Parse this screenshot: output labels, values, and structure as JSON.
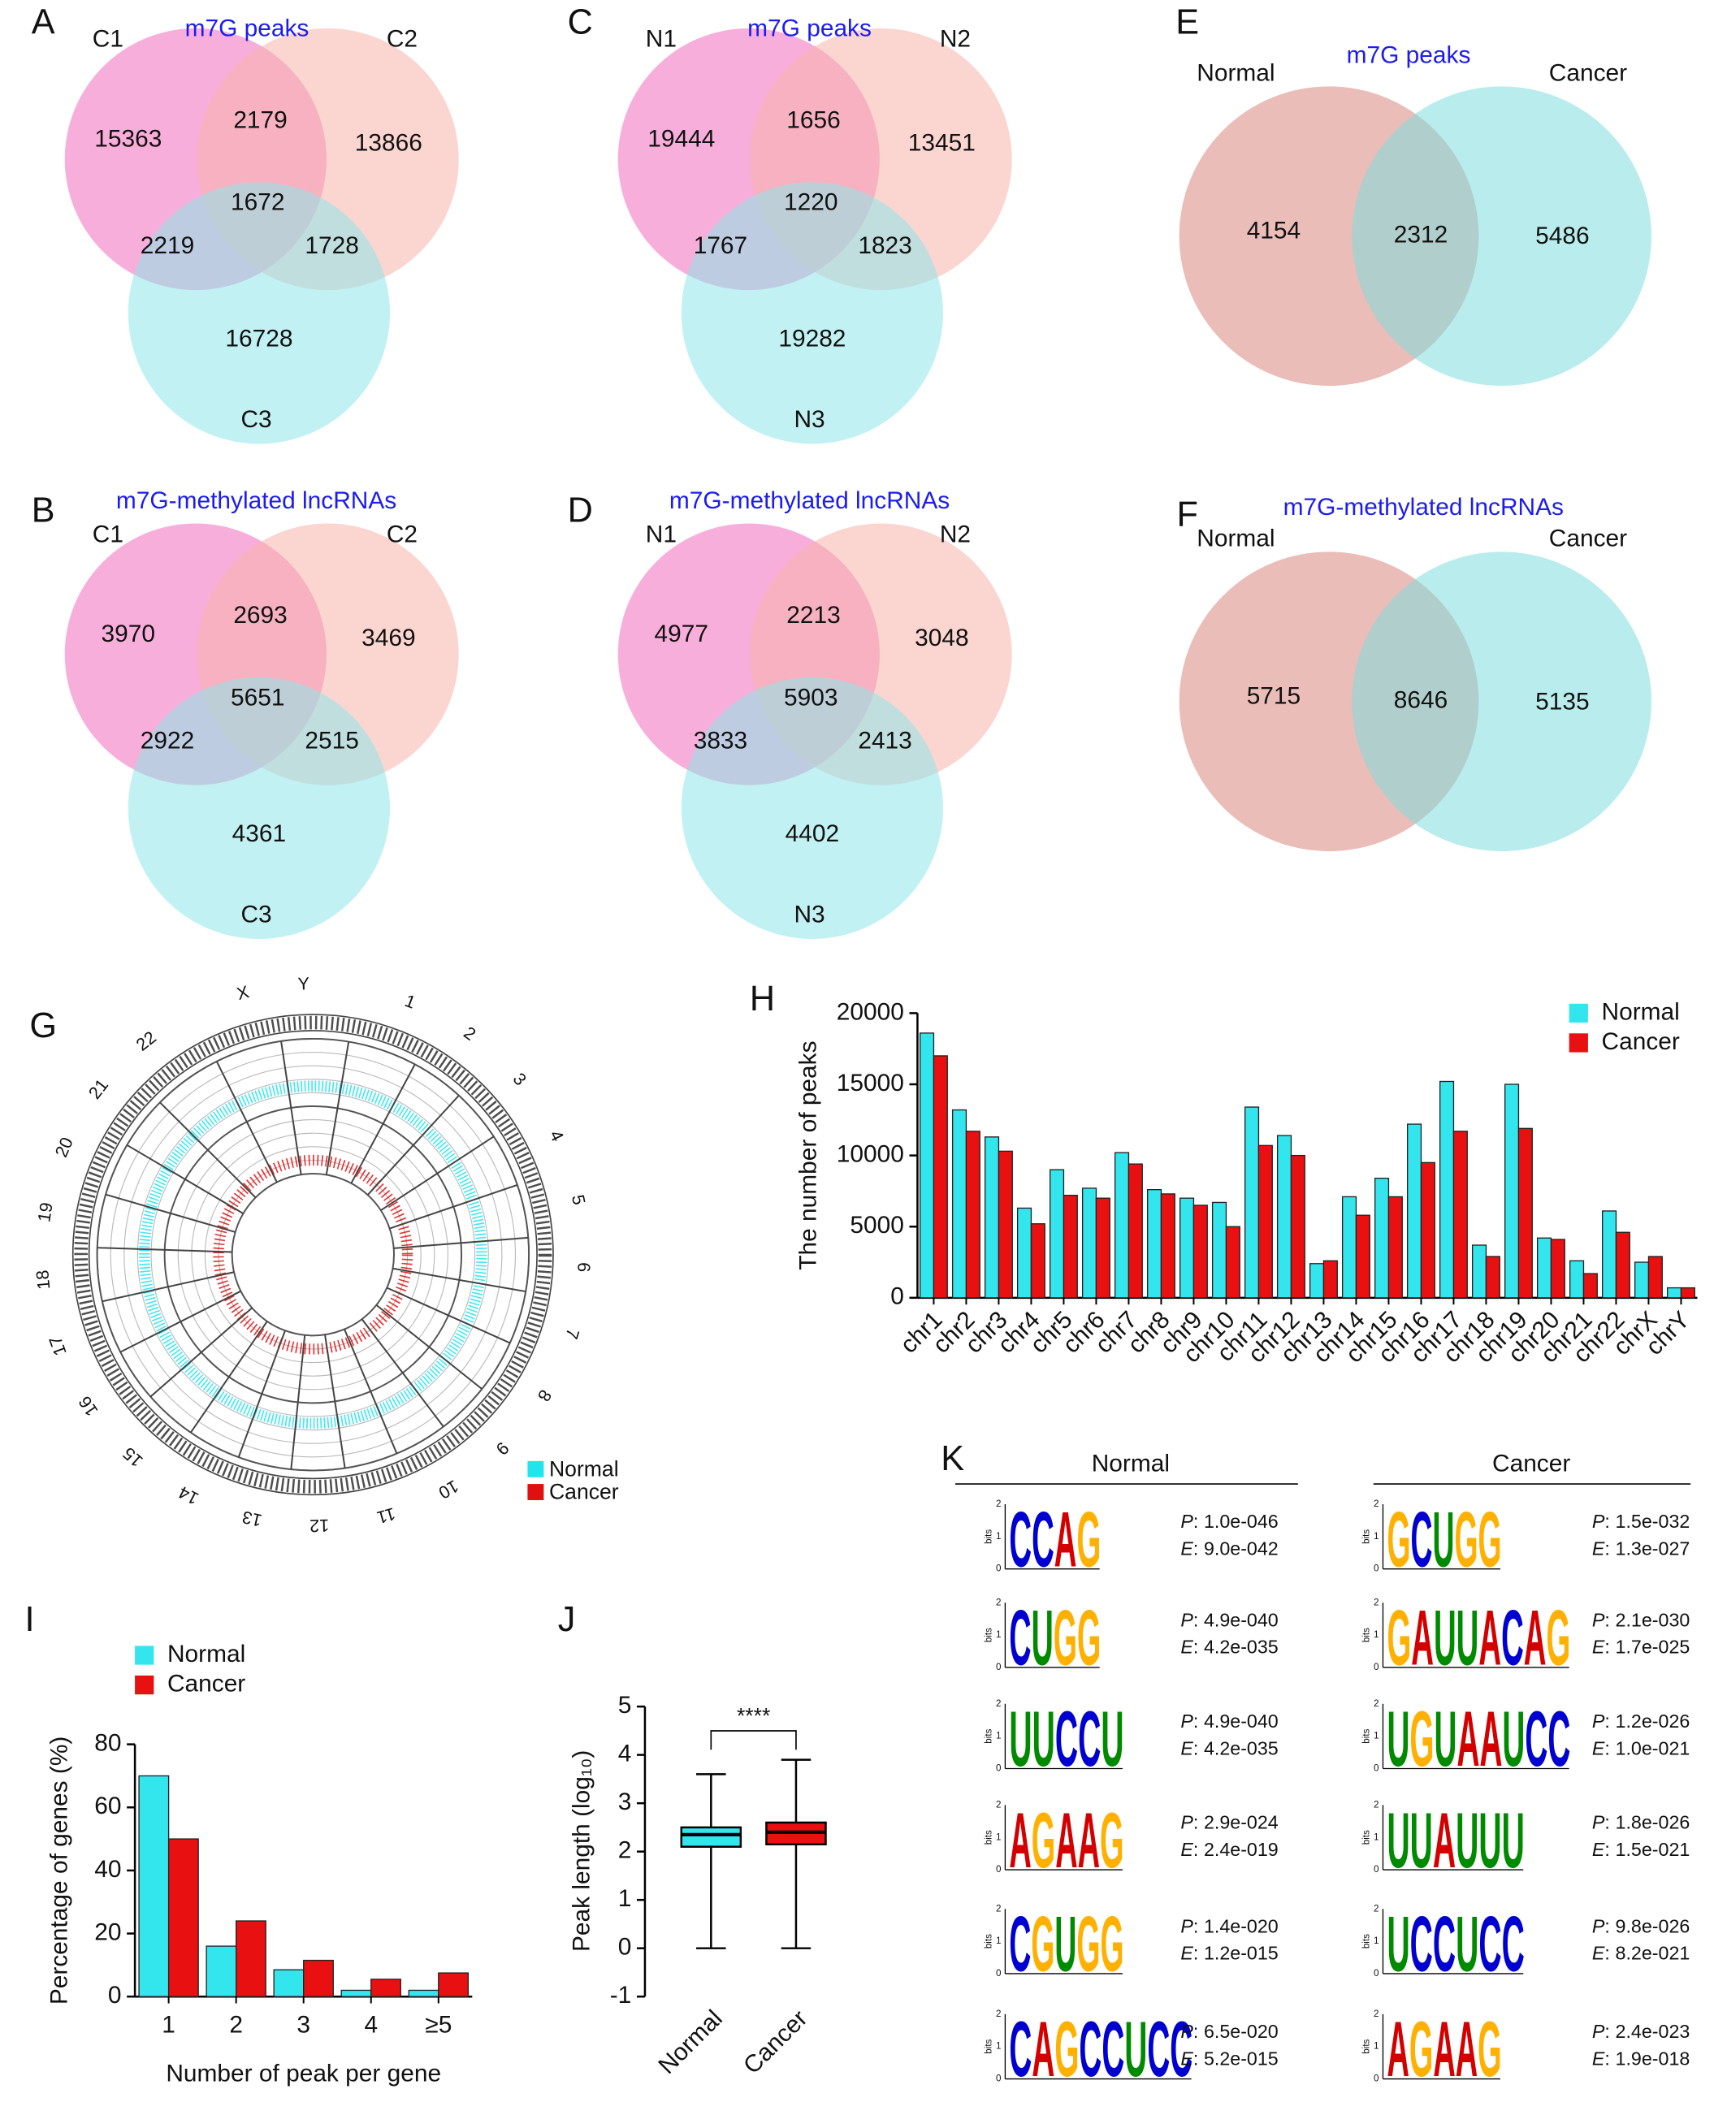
{
  "chart_data": [
    {
      "type": "venn3",
      "panel": "A",
      "title": "m7G peaks",
      "title_color": "#1c1cf0",
      "sets": [
        {
          "name": "C1",
          "color": "#f06cbc"
        },
        {
          "name": "C2",
          "color": "#f8b4ac"
        },
        {
          "name": "C3",
          "color": "#8fe6ea"
        }
      ],
      "regions": [
        {
          "sets": [
            0
          ],
          "value": 15363
        },
        {
          "sets": [
            1
          ],
          "value": 13866
        },
        {
          "sets": [
            2
          ],
          "value": 16728
        },
        {
          "sets": [
            0,
            1
          ],
          "value": 2179
        },
        {
          "sets": [
            0,
            2
          ],
          "value": 2219
        },
        {
          "sets": [
            1,
            2
          ],
          "value": 1728
        },
        {
          "sets": [
            0,
            1,
            2
          ],
          "value": 1672
        }
      ]
    },
    {
      "type": "venn3",
      "panel": "C",
      "title": "m7G peaks",
      "title_color": "#1c1cf0",
      "sets": [
        {
          "name": "N1",
          "color": "#f06cbc"
        },
        {
          "name": "N2",
          "color": "#f8b4ac"
        },
        {
          "name": "N3",
          "color": "#8fe6ea"
        }
      ],
      "regions": [
        {
          "sets": [
            0
          ],
          "value": 19444
        },
        {
          "sets": [
            1
          ],
          "value": 13451
        },
        {
          "sets": [
            2
          ],
          "value": 19282
        },
        {
          "sets": [
            0,
            1
          ],
          "value": 1656
        },
        {
          "sets": [
            0,
            2
          ],
          "value": 1767
        },
        {
          "sets": [
            1,
            2
          ],
          "value": 1823
        },
        {
          "sets": [
            0,
            1,
            2
          ],
          "value": 1220
        }
      ]
    },
    {
      "type": "venn2",
      "panel": "E",
      "title": "m7G peaks",
      "title_color": "#1c1cf0",
      "sets": [
        {
          "name": "Normal",
          "color": "#d98780"
        },
        {
          "name": "Cancer",
          "color": "#7fdcdc"
        }
      ],
      "regions": [
        {
          "sets": [
            0
          ],
          "value": 4154
        },
        {
          "sets": [
            0,
            1
          ],
          "value": 2312
        },
        {
          "sets": [
            1
          ],
          "value": 5486
        }
      ]
    },
    {
      "type": "venn3",
      "panel": "B",
      "title": "m7G-methylated lncRNAs",
      "title_color": "#1c1cf0",
      "sets": [
        {
          "name": "C1",
          "color": "#f06cbc"
        },
        {
          "name": "C2",
          "color": "#f8b4ac"
        },
        {
          "name": "C3",
          "color": "#8fe6ea"
        }
      ],
      "regions": [
        {
          "sets": [
            0
          ],
          "value": 3970
        },
        {
          "sets": [
            1
          ],
          "value": 3469
        },
        {
          "sets": [
            2
          ],
          "value": 4361
        },
        {
          "sets": [
            0,
            1
          ],
          "value": 2693
        },
        {
          "sets": [
            0,
            2
          ],
          "value": 2922
        },
        {
          "sets": [
            1,
            2
          ],
          "value": 2515
        },
        {
          "sets": [
            0,
            1,
            2
          ],
          "value": 5651
        }
      ]
    },
    {
      "type": "venn3",
      "panel": "D",
      "title": "m7G-methylated lncRNAs",
      "title_color": "#1c1cf0",
      "sets": [
        {
          "name": "N1",
          "color": "#f06cbc"
        },
        {
          "name": "N2",
          "color": "#f8b4ac"
        },
        {
          "name": "N3",
          "color": "#8fe6ea"
        }
      ],
      "regions": [
        {
          "sets": [
            0
          ],
          "value": 4977
        },
        {
          "sets": [
            1
          ],
          "value": 3048
        },
        {
          "sets": [
            2
          ],
          "value": 4402
        },
        {
          "sets": [
            0,
            1
          ],
          "value": 2213
        },
        {
          "sets": [
            0,
            2
          ],
          "value": 3833
        },
        {
          "sets": [
            1,
            2
          ],
          "value": 2413
        },
        {
          "sets": [
            0,
            1,
            2
          ],
          "value": 5903
        }
      ]
    },
    {
      "type": "venn2",
      "panel": "F",
      "title": "m7G-methylated lncRNAs",
      "title_color": "#1c1cf0",
      "sets": [
        {
          "name": "Normal",
          "color": "#d98780"
        },
        {
          "name": "Cancer",
          "color": "#7fdcdc"
        }
      ],
      "regions": [
        {
          "sets": [
            0
          ],
          "value": 5715
        },
        {
          "sets": [
            0,
            1
          ],
          "value": 8646
        },
        {
          "sets": [
            1
          ],
          "value": 5135
        }
      ]
    },
    {
      "type": "circos",
      "panel": "G",
      "legend": "bottom-right",
      "chromosomes": [
        "1",
        "2",
        "3",
        "4",
        "5",
        "6",
        "7",
        "8",
        "9",
        "10",
        "11",
        "12",
        "13",
        "14",
        "15",
        "16",
        "17",
        "18",
        "19",
        "20",
        "21",
        "22",
        "X",
        "Y"
      ],
      "series": [
        {
          "name": "Normal",
          "color": "#22e4ee"
        },
        {
          "name": "Cancer",
          "color": "#e01010"
        }
      ]
    },
    {
      "type": "bar",
      "panel": "H",
      "ylabel": "The number of peaks",
      "legend": "top-right",
      "categories": [
        "chr1",
        "chr2",
        "chr3",
        "chr4",
        "chr5",
        "chr6",
        "chr7",
        "chr8",
        "chr9",
        "chr10",
        "chr11",
        "chr12",
        "chr13",
        "chr14",
        "chr15",
        "chr16",
        "chr17",
        "chr18",
        "chr19",
        "chr20",
        "chr21",
        "chr22",
        "chrX",
        "chrY"
      ],
      "series": [
        {
          "name": "Normal",
          "color": "#33e6ee",
          "values": [
            18600,
            13200,
            11300,
            6300,
            9000,
            7700,
            10200,
            7600,
            7000,
            6700,
            13400,
            11400,
            2400,
            7100,
            8400,
            12200,
            15200,
            3700,
            15000,
            4200,
            2600,
            6100,
            2500,
            700
          ]
        },
        {
          "name": "Cancer",
          "color": "#e81010",
          "values": [
            17000,
            11700,
            10300,
            5200,
            7200,
            7000,
            9400,
            7300,
            6500,
            5000,
            10700,
            10000,
            2600,
            5800,
            7100,
            9500,
            11700,
            2900,
            11900,
            4100,
            1700,
            4600,
            2900,
            700
          ]
        }
      ],
      "ylim": [
        0,
        20000
      ],
      "yticks": [
        0,
        5000,
        10000,
        15000,
        20000
      ]
    },
    {
      "type": "bar",
      "panel": "I",
      "ylabel": "Percentage of genes (%)",
      "xlabel": "Number of peak per gene",
      "legend": "top-left",
      "categories": [
        "1",
        "2",
        "3",
        "4",
        "≥5"
      ],
      "series": [
        {
          "name": "Normal",
          "color": "#33e6ee",
          "values": [
            70,
            16,
            8.5,
            2,
            2
          ]
        },
        {
          "name": "Cancer",
          "color": "#e81010",
          "values": [
            50,
            24,
            11.5,
            5.5,
            7.5
          ]
        }
      ],
      "ylim": [
        0,
        80
      ],
      "yticks": [
        0,
        20,
        40,
        60,
        80
      ]
    },
    {
      "type": "box",
      "panel": "J",
      "ylabel": "Peak length (log₁₀)",
      "annotation": "****",
      "boxes": [
        {
          "name": "Normal",
          "color": "#33e6ee",
          "min": 0,
          "q1": 2.1,
          "median": 2.35,
          "q3": 2.5,
          "max": 3.6
        },
        {
          "name": "Cancer",
          "color": "#e81010",
          "min": 0,
          "q1": 2.15,
          "median": 2.4,
          "q3": 2.6,
          "max": 3.9
        }
      ],
      "ylim": [
        -1,
        5
      ],
      "yticks": [
        -1,
        0,
        1,
        2,
        3,
        4,
        5
      ]
    },
    {
      "type": "motifs",
      "panel": "K",
      "p_symbol": "P",
      "e_symbol": "E",
      "separator": ":",
      "logo_ylabel": "bits",
      "logo_yticks": [
        0,
        1,
        2
      ],
      "letter_colors": {
        "A": "#d40000",
        "C": "#0000d0",
        "G": "#ffb000",
        "U": "#008a00"
      },
      "groups": [
        {
          "name": "Normal",
          "motifs": [
            {
              "letters": "CCAG",
              "p": "1.0e-046",
              "e": "9.0e-042"
            },
            {
              "letters": "CUGG",
              "p": "4.9e-040",
              "e": "4.2e-035"
            },
            {
              "letters": "UUCCU",
              "p": "4.9e-040",
              "e": "4.2e-035"
            },
            {
              "letters": "AGAAG",
              "p": "2.9e-024",
              "e": "2.4e-019"
            },
            {
              "letters": "CGUGG",
              "p": "1.4e-020",
              "e": "1.2e-015"
            },
            {
              "letters": "CAGCCUCC",
              "p": "6.5e-020",
              "e": "5.2e-015"
            }
          ]
        },
        {
          "name": "Cancer",
          "motifs": [
            {
              "letters": "GCUGG",
              "p": "1.5e-032",
              "e": "1.3e-027"
            },
            {
              "letters": "GAUUACAG",
              "p": "2.1e-030",
              "e": "1.7e-025"
            },
            {
              "letters": "UGUAAUCC",
              "p": "1.2e-026",
              "e": "1.0e-021"
            },
            {
              "letters": "UUAUUU",
              "p": "1.8e-026",
              "e": "1.5e-021"
            },
            {
              "letters": "UCCUCC",
              "p": "9.8e-026",
              "e": "8.2e-021"
            },
            {
              "letters": "AGAAG",
              "p": "2.4e-023",
              "e": "1.9e-018"
            }
          ]
        }
      ]
    }
  ]
}
